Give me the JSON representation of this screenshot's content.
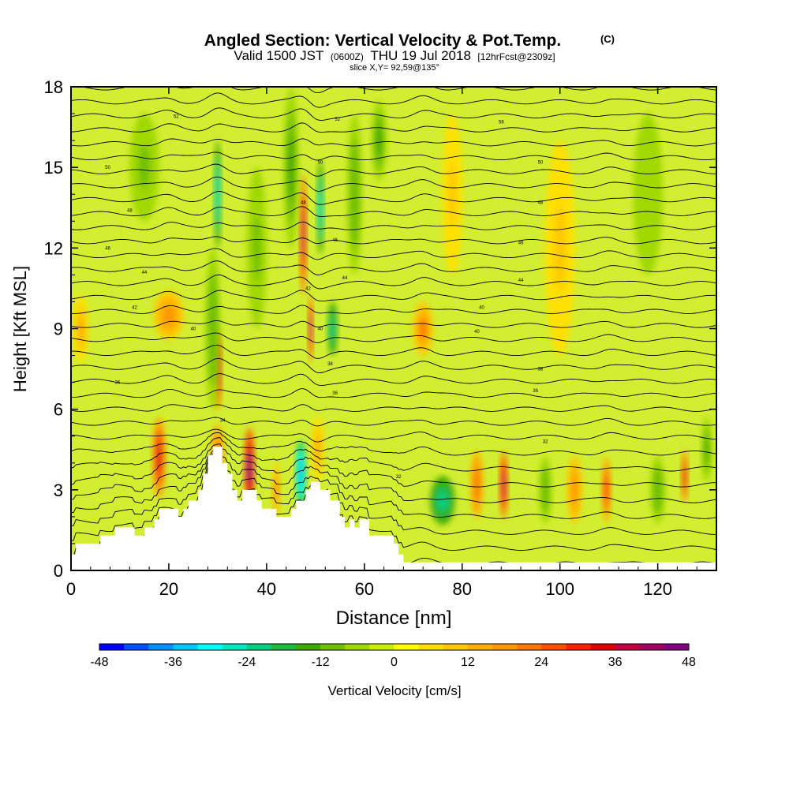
{
  "chart_data": {
    "type": "heatmap",
    "title": "Angled Section: Vertical Velocity & Pot.Temp.",
    "title_mark": "(C)",
    "subtitle": {
      "valid": "Valid 1500 JST",
      "utc": "(0600Z)",
      "date": "THU 19 Jul 2018",
      "forecast": "[12hrFcst@2309z]"
    },
    "slice": "slice X,Y= 92,59@135°",
    "xlabel": "Distance [nm]",
    "ylabel": "Height [Kft MSL]",
    "xlim": [
      0,
      132
    ],
    "ylim": [
      0,
      18
    ],
    "xticks": [
      "0",
      "20",
      "40",
      "60",
      "80",
      "100",
      "120"
    ],
    "yticks": [
      "0",
      "3",
      "6",
      "9",
      "12",
      "15",
      "18"
    ],
    "colorbar": {
      "label": "Vertical Velocity [cm/s]",
      "range": [
        -48,
        48
      ],
      "step": 4,
      "tick_labels": [
        "-48",
        "-36",
        "-24",
        "-12",
        "0",
        "12",
        "24",
        "36",
        "48"
      ],
      "colors": [
        "#0000ff",
        "#0050ff",
        "#0090ff",
        "#00c8ff",
        "#00ffff",
        "#00e8c0",
        "#00d080",
        "#20b840",
        "#40a800",
        "#70c000",
        "#a0d800",
        "#c8f000",
        "#ffff00",
        "#ffe000",
        "#ffc800",
        "#ffb000",
        "#ff9800",
        "#ff7800",
        "#ff5000",
        "#ff2000",
        "#e00000",
        "#c00040",
        "#a00060",
        "#800080"
      ]
    },
    "features": [
      {
        "x": 18,
        "y": 4.2,
        "w": 2.5,
        "h": 3.0,
        "v": 34
      },
      {
        "x": 30,
        "y": 7.5,
        "w": 1.5,
        "h": 3.0,
        "v": 38
      },
      {
        "x": 36.5,
        "y": 3.8,
        "w": 2.0,
        "h": 3.0,
        "v": 45
      },
      {
        "x": 42,
        "y": 3.0,
        "w": 1.5,
        "h": 2.0,
        "v": 20
      },
      {
        "x": 47,
        "y": 3.6,
        "w": 2.0,
        "h": 2.5,
        "v": -36
      },
      {
        "x": 50.5,
        "y": 4.5,
        "w": 2.5,
        "h": 2.5,
        "v": 14
      },
      {
        "x": 47.5,
        "y": 12.5,
        "w": 1.3,
        "h": 4.5,
        "v": 38
      },
      {
        "x": 49,
        "y": 9.0,
        "w": 1.0,
        "h": 2.5,
        "v": 40
      },
      {
        "x": 51,
        "y": 13.5,
        "w": 1.4,
        "h": 3.5,
        "v": -28
      },
      {
        "x": 53.5,
        "y": 9.0,
        "w": 2.0,
        "h": 2.0,
        "v": -24
      },
      {
        "x": 30,
        "y": 14.0,
        "w": 1.4,
        "h": 4.0,
        "v": -26
      },
      {
        "x": 29,
        "y": 9.0,
        "w": 3.0,
        "h": 6.0,
        "v": -12
      },
      {
        "x": 76,
        "y": 2.6,
        "w": 5.0,
        "h": 1.8,
        "v": -24
      },
      {
        "x": 72,
        "y": 9.0,
        "w": 4.0,
        "h": 2.0,
        "v": 20
      },
      {
        "x": 20,
        "y": 9.5,
        "w": 6.0,
        "h": 1.8,
        "v": 16
      },
      {
        "x": 2,
        "y": 9.0,
        "w": 3.0,
        "h": 2.5,
        "v": 14
      },
      {
        "x": 88.5,
        "y": 3.2,
        "w": 1.6,
        "h": 2.5,
        "v": 36
      },
      {
        "x": 83,
        "y": 3.2,
        "w": 2.5,
        "h": 2.5,
        "v": 22
      },
      {
        "x": 97,
        "y": 3.0,
        "w": 2.5,
        "h": 2.5,
        "v": -12
      },
      {
        "x": 103,
        "y": 3.0,
        "w": 3.0,
        "h": 2.5,
        "v": 18
      },
      {
        "x": 109.5,
        "y": 3.0,
        "w": 1.8,
        "h": 2.5,
        "v": 28
      },
      {
        "x": 120,
        "y": 3.0,
        "w": 3.0,
        "h": 2.5,
        "v": -12
      },
      {
        "x": 125.5,
        "y": 3.5,
        "w": 1.3,
        "h": 2.0,
        "v": 32
      },
      {
        "x": 130,
        "y": 4.5,
        "w": 2.0,
        "h": 2.5,
        "v": -14
      },
      {
        "x": 45,
        "y": 15.0,
        "w": 3.0,
        "h": 6.0,
        "v": -14
      },
      {
        "x": 58,
        "y": 14.0,
        "w": 3.0,
        "h": 6.0,
        "v": -12
      },
      {
        "x": 63,
        "y": 16.0,
        "w": 3.0,
        "h": 3.0,
        "v": -14
      },
      {
        "x": 30,
        "y": 4.2,
        "w": 2.5,
        "h": 2.5,
        "v": 22
      },
      {
        "x": 78,
        "y": 14.0,
        "w": 4.0,
        "h": 6.0,
        "v": 10
      },
      {
        "x": 100,
        "y": 12.0,
        "w": 6.0,
        "h": 8.0,
        "v": 8
      },
      {
        "x": 118,
        "y": 14.0,
        "w": 6.0,
        "h": 6.0,
        "v": -8
      },
      {
        "x": 15,
        "y": 15.0,
        "w": 6.0,
        "h": 4.0,
        "v": -10
      },
      {
        "x": 38,
        "y": 12.0,
        "w": 4.0,
        "h": 6.0,
        "v": -10
      }
    ],
    "terrain": [
      [
        0,
        0.6
      ],
      [
        1,
        1.0
      ],
      [
        6,
        1.3
      ],
      [
        8,
        1.3
      ],
      [
        9,
        1.6
      ],
      [
        13,
        1.3
      ],
      [
        15,
        1.6
      ],
      [
        17,
        1.9
      ],
      [
        18,
        2.3
      ],
      [
        22,
        2.0
      ],
      [
        23,
        2.3
      ],
      [
        24,
        2.6
      ],
      [
        26,
        3.0
      ],
      [
        27,
        3.6
      ],
      [
        28,
        4.3
      ],
      [
        29,
        4.6
      ],
      [
        31,
        4.0
      ],
      [
        32,
        3.6
      ],
      [
        33,
        3.0
      ],
      [
        34,
        2.6
      ],
      [
        35,
        3.0
      ],
      [
        38,
        2.6
      ],
      [
        39,
        2.3
      ],
      [
        42,
        2.0
      ],
      [
        45,
        2.3
      ],
      [
        46,
        2.6
      ],
      [
        48,
        3.0
      ],
      [
        49,
        3.3
      ],
      [
        51,
        3.0
      ],
      [
        53,
        2.6
      ],
      [
        55,
        2.0
      ],
      [
        56,
        1.6
      ],
      [
        57,
        1.9
      ],
      [
        58,
        1.6
      ],
      [
        59,
        1.9
      ],
      [
        61,
        1.3
      ],
      [
        66,
        1.0
      ],
      [
        67,
        0.6
      ],
      [
        68,
        0.3
      ],
      [
        132,
        0.3
      ]
    ],
    "isentropes": {
      "spacing_kft": 0.52,
      "count": 34,
      "labels": [
        {
          "text": "52",
          "x": 21.5,
          "y": 16.9
        },
        {
          "text": "52",
          "x": 54.5,
          "y": 16.8
        },
        {
          "text": "56",
          "x": 88,
          "y": 16.7
        },
        {
          "text": "50",
          "x": 51,
          "y": 15.2
        },
        {
          "text": "50",
          "x": 7.5,
          "y": 15.0
        },
        {
          "text": "50",
          "x": 96,
          "y": 15.2
        },
        {
          "text": "48",
          "x": 47.5,
          "y": 13.7
        },
        {
          "text": "48",
          "x": 12,
          "y": 13.4
        },
        {
          "text": "48",
          "x": 96,
          "y": 13.7
        },
        {
          "text": "46",
          "x": 54,
          "y": 12.3
        },
        {
          "text": "46",
          "x": 7.5,
          "y": 12.0
        },
        {
          "text": "46",
          "x": 92,
          "y": 12.2
        },
        {
          "text": "44",
          "x": 56,
          "y": 10.9
        },
        {
          "text": "44",
          "x": 15,
          "y": 11.1
        },
        {
          "text": "44",
          "x": 92,
          "y": 10.8
        },
        {
          "text": "42",
          "x": 48.5,
          "y": 10.5
        },
        {
          "text": "42",
          "x": 13,
          "y": 9.8
        },
        {
          "text": "40",
          "x": 84,
          "y": 9.8
        },
        {
          "text": "40",
          "x": 51,
          "y": 9.0
        },
        {
          "text": "40",
          "x": 25,
          "y": 9.0
        },
        {
          "text": "40",
          "x": 83,
          "y": 8.9
        },
        {
          "text": "38",
          "x": 53,
          "y": 7.7
        },
        {
          "text": "38",
          "x": 96,
          "y": 7.5
        },
        {
          "text": "36",
          "x": 54,
          "y": 6.6
        },
        {
          "text": "36",
          "x": 95,
          "y": 6.7
        },
        {
          "text": "36",
          "x": 9.5,
          "y": 7.0
        },
        {
          "text": "34",
          "x": 31,
          "y": 5.6
        },
        {
          "text": "32",
          "x": 97,
          "y": 4.8
        },
        {
          "text": "32",
          "x": 67,
          "y": 3.5
        }
      ]
    }
  }
}
